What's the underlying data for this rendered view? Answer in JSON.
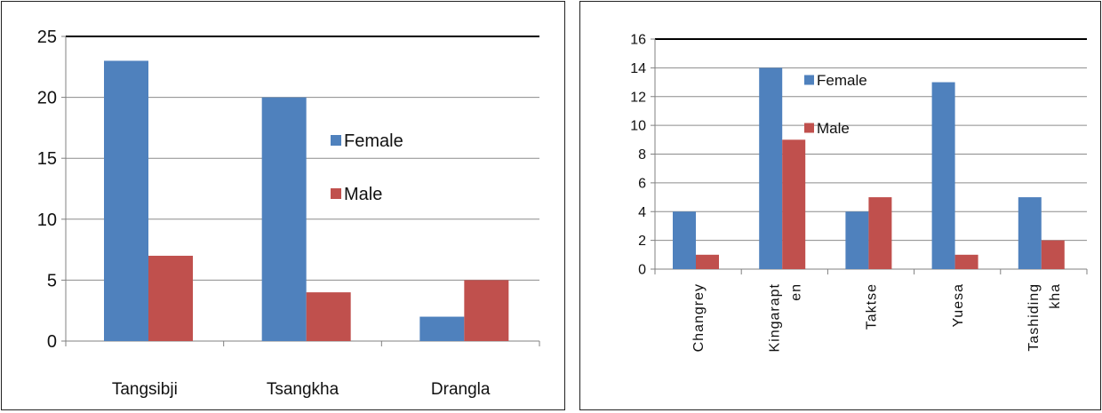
{
  "chart_data": [
    {
      "type": "bar",
      "categories": [
        "Tangsibji",
        "Tsangkha",
        "Drangla"
      ],
      "series": [
        {
          "name": "Female",
          "color": "#4F81BD",
          "values": [
            23,
            20,
            2
          ]
        },
        {
          "name": "Male",
          "color": "#C0504D",
          "values": [
            7,
            4,
            5
          ]
        }
      ],
      "ylim": [
        0,
        25
      ],
      "yticks": [
        0,
        5,
        10,
        15,
        20,
        25
      ],
      "grid": true,
      "legend": "right"
    },
    {
      "type": "bar",
      "categories": [
        "Changrey",
        "Kingarapten",
        "Taktse",
        "Yuesa",
        "Tashidingkha"
      ],
      "category_label_lines": [
        [
          "Changrey"
        ],
        [
          "Kingarapt",
          "en"
        ],
        [
          "Taktse"
        ],
        [
          "Yuesa"
        ],
        [
          "Tashiding",
          "kha"
        ]
      ],
      "series": [
        {
          "name": "Female",
          "color": "#4F81BD",
          "values": [
            4,
            14,
            4,
            13,
            5
          ]
        },
        {
          "name": "Male",
          "color": "#C0504D",
          "values": [
            1,
            9,
            5,
            1,
            2
          ]
        }
      ],
      "ylim": [
        0,
        16
      ],
      "yticks": [
        0,
        2,
        4,
        6,
        8,
        10,
        12,
        14,
        16
      ],
      "grid": true,
      "legend": "top-center"
    }
  ]
}
